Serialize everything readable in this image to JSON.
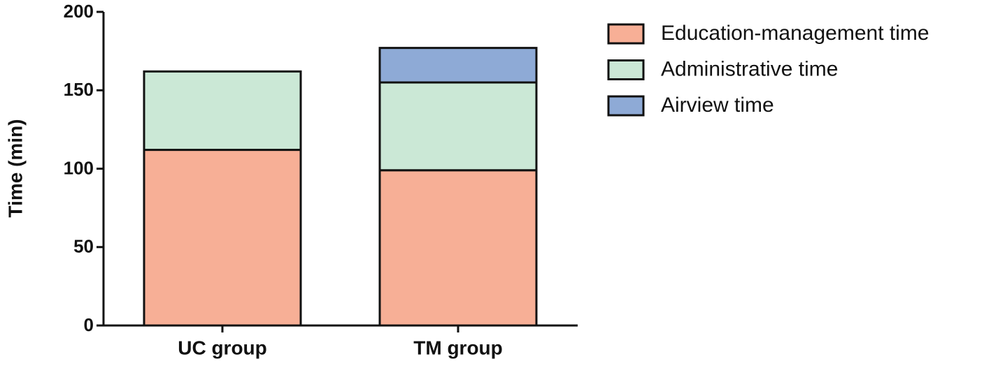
{
  "chart_data": {
    "type": "stacked_bar",
    "y_label": "Time (min)",
    "categories": [
      "UC group",
      "TM group"
    ],
    "series": [
      {
        "name": "Education-management time",
        "color": "#f7af96",
        "values": [
          112,
          99
        ]
      },
      {
        "name": "Administrative time",
        "color": "#cbe8d6",
        "values": [
          50,
          56
        ]
      },
      {
        "name": "Airview time",
        "color": "#8eaad6",
        "values": [
          0,
          22
        ]
      }
    ],
    "ylim": [
      0,
      200
    ],
    "yticks": [
      0,
      50,
      100,
      150,
      200
    ],
    "grid": false,
    "legend": "right"
  }
}
